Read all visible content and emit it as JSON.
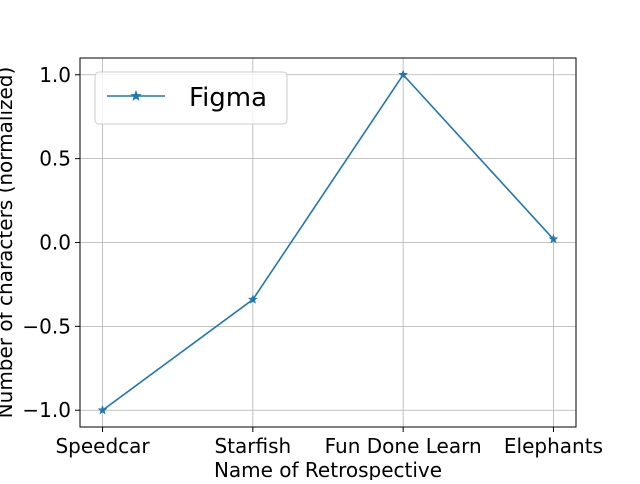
{
  "chart_data": {
    "type": "line",
    "title": "",
    "xlabel": "Name of Retrospective",
    "ylabel": "Number of characters (normalized)",
    "categories": [
      "Speedcar",
      "Starfish",
      "Fun Done Learn",
      "Elephants"
    ],
    "series": [
      {
        "name": "Figma",
        "values": [
          -1.0,
          -0.34,
          1.0,
          0.02
        ],
        "color": "#1f77b4",
        "marker": "star"
      }
    ],
    "ylim": [
      -1.1,
      1.1
    ],
    "yticks": [
      -1.0,
      -0.5,
      0.0,
      0.5,
      1.0
    ],
    "ytick_labels": [
      "−1.0",
      "−0.5",
      "0.0",
      "0.5",
      "1.0"
    ],
    "grid": true,
    "legend_position": "top-left"
  }
}
